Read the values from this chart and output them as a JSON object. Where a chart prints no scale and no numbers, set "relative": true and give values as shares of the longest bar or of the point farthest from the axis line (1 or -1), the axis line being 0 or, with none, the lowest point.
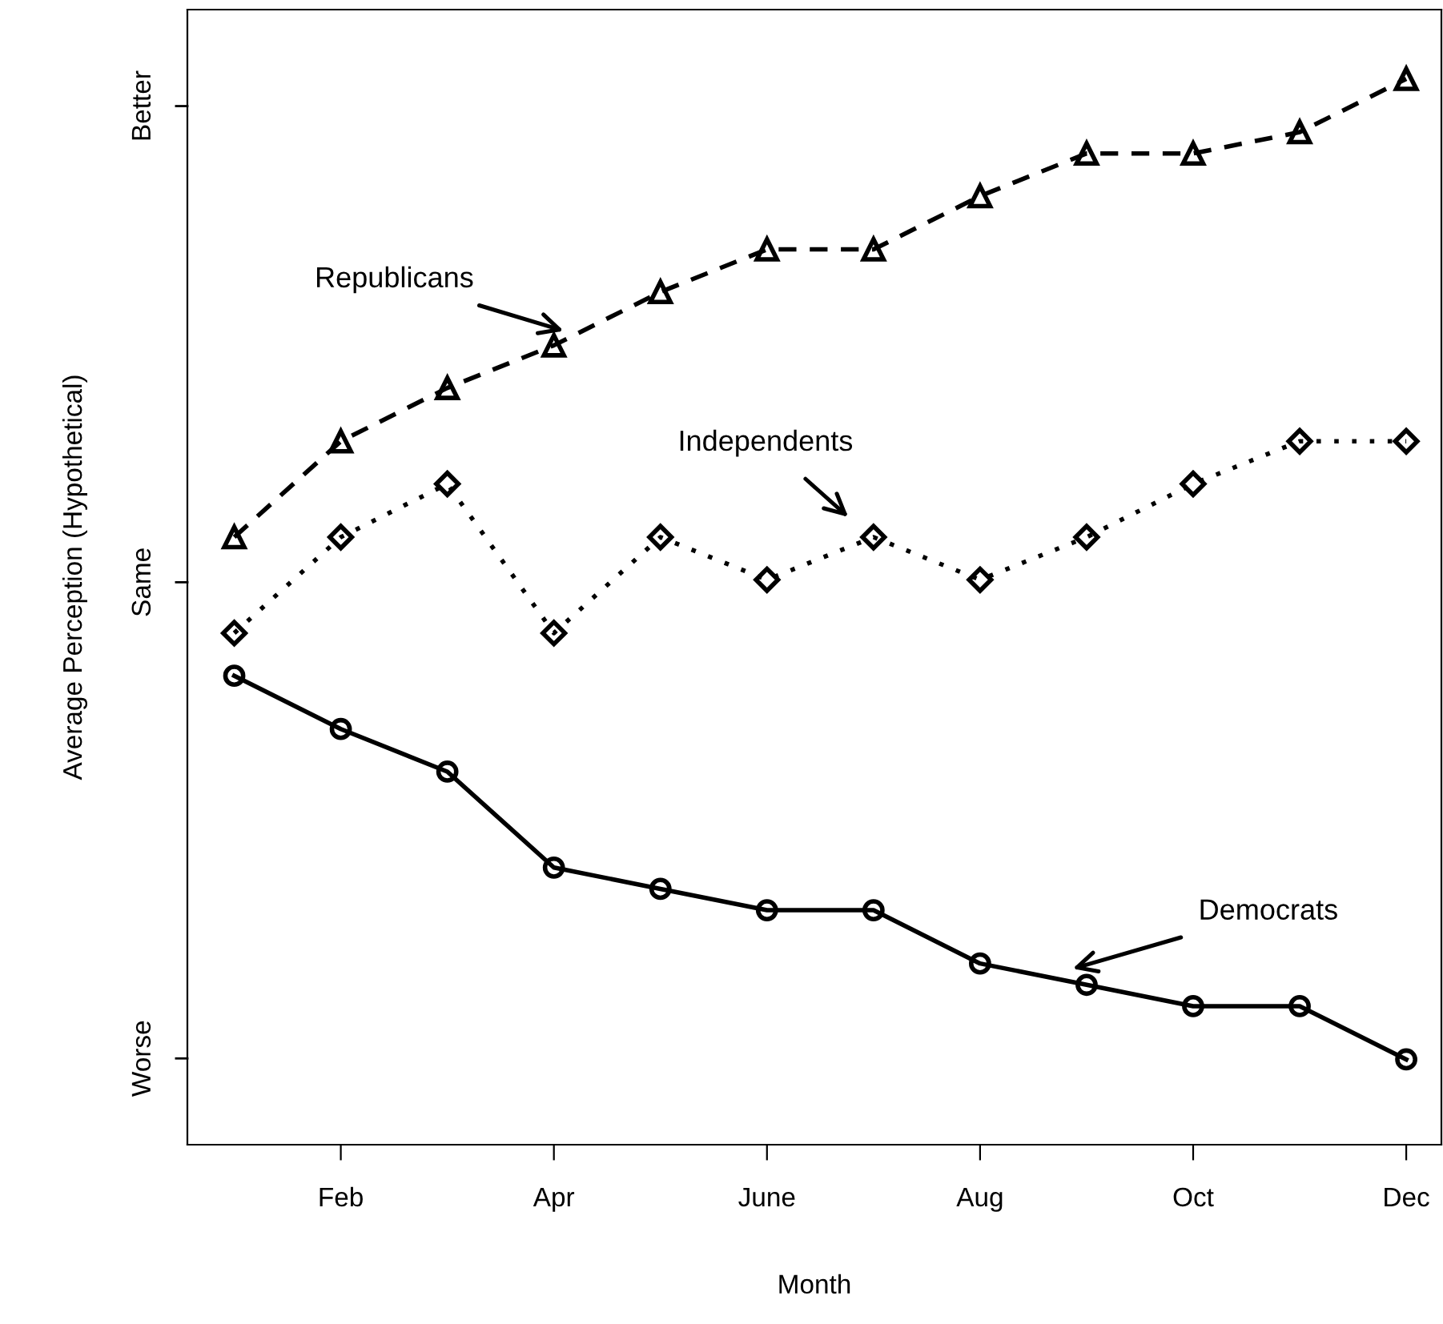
{
  "chart_data": {
    "type": "line",
    "xlabel": "Month",
    "ylabel": "Average Perception (Hypothetical)",
    "categories": [
      null,
      "Feb",
      null,
      "Apr",
      null,
      "June",
      null,
      "Aug",
      null,
      "Oct",
      null,
      "Dec"
    ],
    "relative": true,
    "grid": false,
    "series": [
      {
        "name": "Republicans",
        "color": "#000000",
        "marker": "triangle",
        "line_style": "dashed",
        "values": [
          0.57,
          0.66,
          0.71,
          0.75,
          0.8,
          0.84,
          0.84,
          0.89,
          0.93,
          0.93,
          0.95,
          1
        ]
      },
      {
        "name": "Independents",
        "color": "#000000",
        "marker": "diamond",
        "line_style": "dotted",
        "values": [
          0.48,
          0.57,
          0.62,
          0.48,
          0.57,
          0.53,
          0.57,
          0.53,
          0.57,
          0.62,
          0.66,
          0.66
        ]
      },
      {
        "name": "Democrats",
        "color": "#000000",
        "marker": "circle",
        "line_style": "solid",
        "values": [
          0.44,
          0.39,
          0.35,
          0.26,
          0.24,
          0.22,
          0.22,
          0.17,
          0.15,
          0.13,
          0.13,
          0.08
        ]
      }
    ],
    "annotations": [
      "Worse",
      "Same",
      "Better"
    ]
  }
}
